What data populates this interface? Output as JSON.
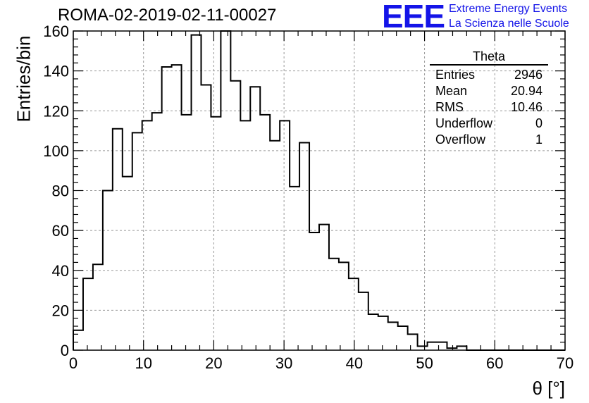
{
  "title": "ROMA-02-2019-02-11-00027",
  "logo": {
    "mark": "EEE",
    "line1": "Extreme Energy Events",
    "line2": "La Scienza nelle Scuole",
    "color": "#1414e8"
  },
  "stats": {
    "title": "Theta",
    "rows": [
      {
        "label": "Entries",
        "value": "2946"
      },
      {
        "label": "Mean",
        "value": "20.94"
      },
      {
        "label": "RMS",
        "value": "10.46"
      },
      {
        "label": "Underflow",
        "value": "0"
      },
      {
        "label": "Overflow",
        "value": "1"
      }
    ]
  },
  "chart_data": {
    "type": "histogram",
    "title": "ROMA-02-2019-02-11-00027",
    "xlabel": "θ [°]",
    "ylabel": "Entries/bin",
    "xlim": [
      0,
      70
    ],
    "ylim": [
      0,
      160
    ],
    "grid": true,
    "bin_width": 1.4,
    "x_ticks": [
      "0",
      "10",
      "20",
      "30",
      "40",
      "50",
      "60",
      "70"
    ],
    "y_ticks": [
      "0",
      "20",
      "40",
      "60",
      "80",
      "100",
      "120",
      "140",
      "160"
    ],
    "values": [
      10,
      36,
      43,
      80,
      111,
      87,
      109,
      115,
      119,
      142,
      143,
      118,
      158,
      133,
      117,
      160,
      135,
      115,
      132,
      118,
      105,
      115,
      82,
      104,
      59,
      63,
      46,
      44,
      36,
      29,
      18,
      17,
      14,
      12,
      8,
      2,
      4,
      4,
      1,
      2,
      0,
      0,
      0,
      0,
      0,
      0,
      0,
      0,
      0,
      0
    ],
    "line_color": "#000000"
  }
}
